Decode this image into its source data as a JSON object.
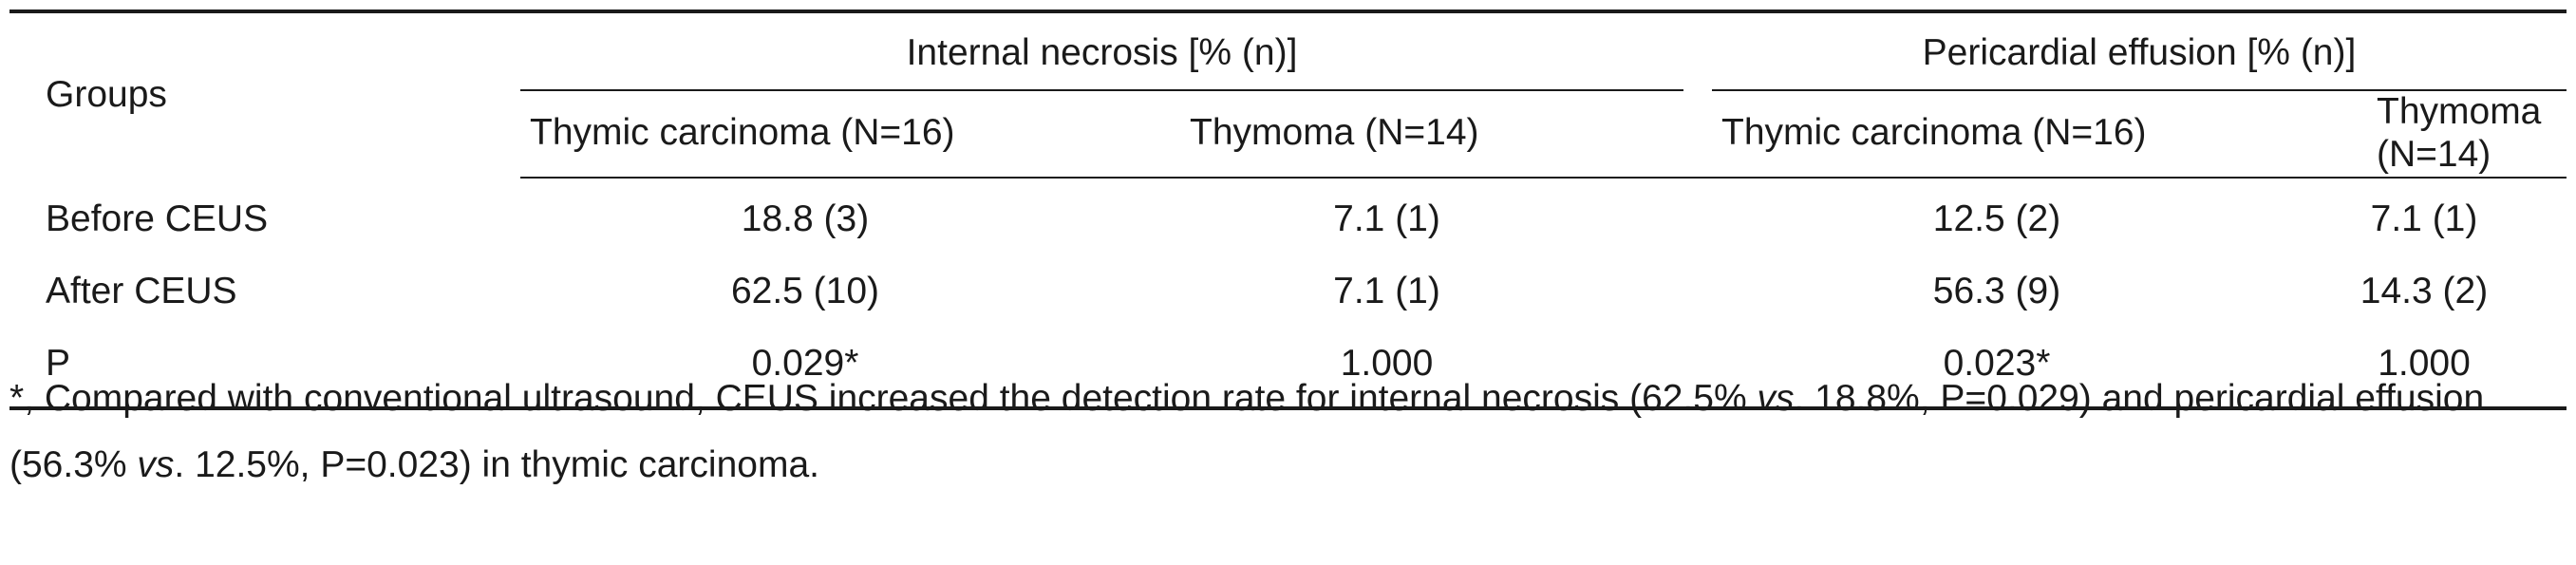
{
  "table": {
    "header": {
      "groups_label": "Groups",
      "group_1": "Internal necrosis [% (n)]",
      "group_2": "Pericardial effusion [% (n)]",
      "sub_1": "Thymic carcinoma (N=16)",
      "sub_2": "Thymoma (N=14)",
      "sub_3": "Thymic carcinoma (N=16)",
      "sub_4": "Thymoma (N=14)"
    },
    "rows": [
      {
        "label": "Before CEUS",
        "v1": "18.8 (3)",
        "v2": "7.1 (1)",
        "v3": "12.5 (2)",
        "v4": "7.1 (1)"
      },
      {
        "label": "After CEUS",
        "v1": "62.5 (10)",
        "v2": "7.1 (1)",
        "v3": "56.3 (9)",
        "v4": "14.3 (2)"
      },
      {
        "label": "P",
        "v1": "0.029*",
        "v2": "1.000",
        "v3": "0.023*",
        "v4": "1.000"
      }
    ]
  },
  "footnote": {
    "part1": "*, Compared with conventional ultrasound, CEUS increased the detection rate for internal necrosis (62.5% ",
    "vs1": "vs",
    "part2": ". 18.8%, P=0.029) and pericardial effusion (56.3% ",
    "vs2": "vs",
    "part3": ". 12.5%, P=0.023) in thymic carcinoma."
  }
}
